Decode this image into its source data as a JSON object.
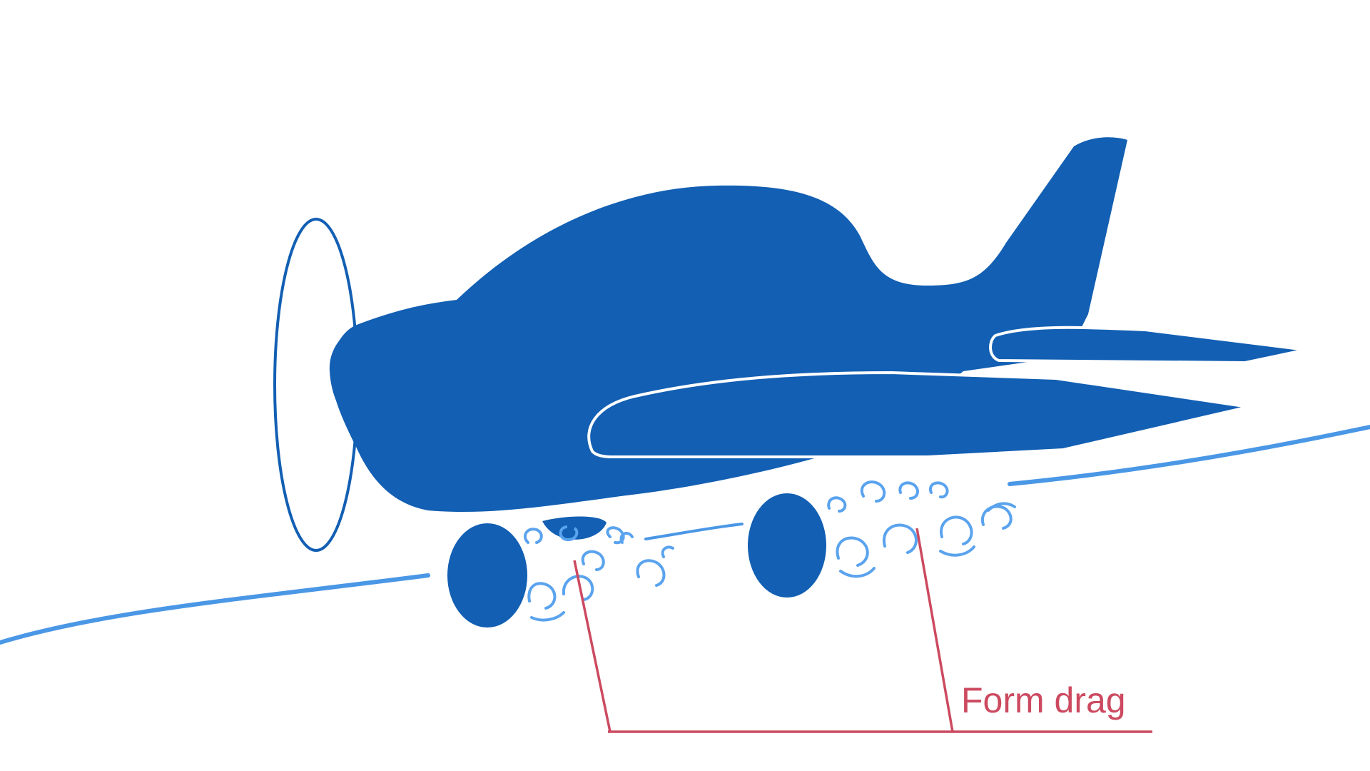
{
  "diagram": {
    "annotation": {
      "label": "Form drag"
    },
    "colors": {
      "background": "#ffffff",
      "aircraft": "#125fb3",
      "airflow": "#4a97e6",
      "vortex": "#5aa3ee",
      "outline": "#ffffff",
      "annotation": "#cc4a60"
    },
    "icons": {
      "aircraft": "propeller-airplane-icon",
      "propeller": "propeller-disc-icon"
    }
  }
}
